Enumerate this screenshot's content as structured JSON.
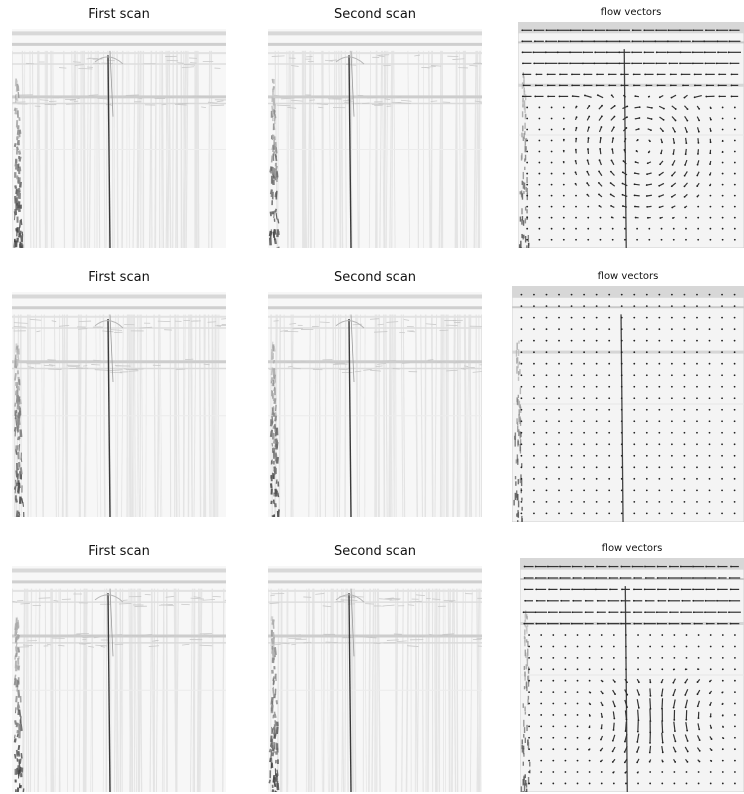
{
  "figure": {
    "rows": [
      {
        "first_title": "First scan",
        "second_title": "Second scan",
        "flow_title": "flow vectors",
        "flow_pattern": "vortex-center-right"
      },
      {
        "first_title": "First scan",
        "second_title": "Second scan",
        "flow_title": "flow vectors",
        "flow_pattern": "uniform-still"
      },
      {
        "first_title": "First scan",
        "second_title": "Second scan",
        "flow_title": "flow vectors",
        "flow_pattern": "dual-vortex-lower"
      }
    ]
  }
}
